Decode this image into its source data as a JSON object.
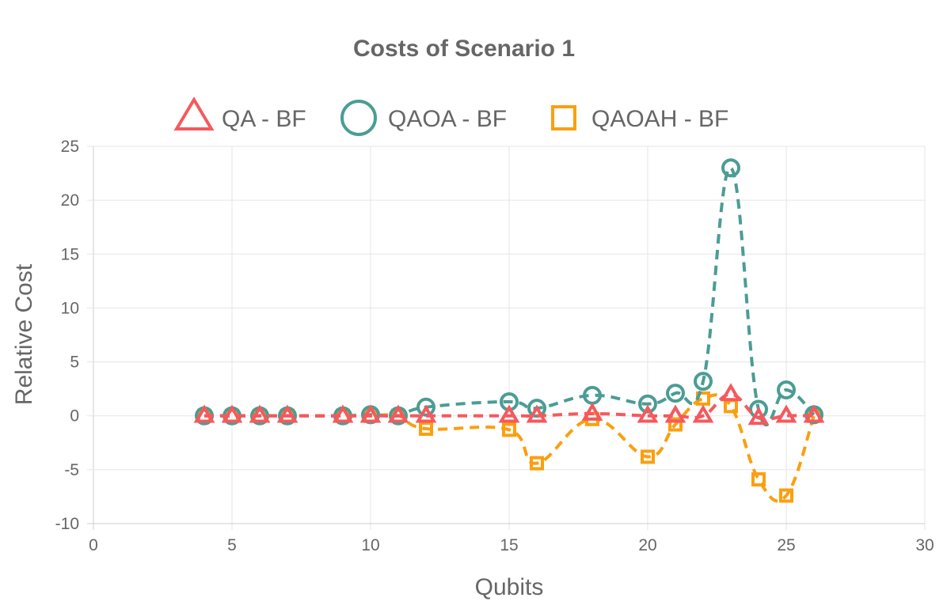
{
  "chart_data": {
    "type": "line",
    "title": "Costs of Scenario 1",
    "xlabel": "Qubits",
    "ylabel": "Relative Cost",
    "xlim": [
      0,
      30
    ],
    "ylim": [
      -10,
      25
    ],
    "xticks": [
      0,
      5,
      10,
      15,
      20,
      25,
      30
    ],
    "yticks": [
      25,
      20,
      15,
      10,
      5,
      0,
      -5,
      -10
    ],
    "grid": true,
    "legend_position": "top",
    "series": [
      {
        "name": "QA - BF",
        "marker": "triangle",
        "color": "#f5595e",
        "x": [
          4,
          5,
          6,
          7,
          9,
          10,
          11,
          12,
          15,
          16,
          18,
          20,
          21,
          22,
          23,
          24,
          25,
          26
        ],
        "y": [
          0,
          0,
          0,
          0,
          0,
          0,
          0,
          0,
          0,
          0,
          0.2,
          0,
          0,
          0,
          2,
          -0.2,
          0,
          0
        ]
      },
      {
        "name": "QAOA - BF",
        "marker": "circle",
        "color": "#4a9d94",
        "x": [
          4,
          5,
          6,
          7,
          9,
          10,
          11,
          12,
          15,
          16,
          18,
          20,
          21,
          22,
          23,
          24,
          25,
          26
        ],
        "y": [
          0,
          0,
          0,
          0,
          0,
          0.1,
          0,
          0.8,
          1.3,
          0.7,
          1.9,
          1.1,
          2.1,
          3.2,
          23,
          0.6,
          2.4,
          0.1
        ]
      },
      {
        "name": "QAOAH - BF",
        "marker": "square",
        "color": "#fb9f10",
        "x": [
          4,
          5,
          6,
          7,
          9,
          10,
          11,
          12,
          15,
          16,
          18,
          20,
          21,
          22,
          23,
          24,
          25,
          26
        ],
        "y": [
          0,
          0,
          0,
          0,
          0,
          0,
          0,
          -1.2,
          -1.3,
          -4.4,
          -0.3,
          -3.8,
          -0.8,
          1.6,
          0.9,
          -5.9,
          -7.4,
          0
        ]
      }
    ]
  }
}
